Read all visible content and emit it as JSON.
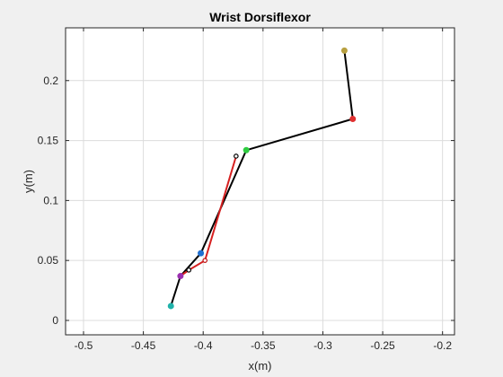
{
  "chart_data": {
    "type": "line",
    "title": "Wrist Dorsiflexor",
    "xlabel": "x(m)",
    "ylabel": "y(m)",
    "xlim": [
      -0.515,
      -0.19
    ],
    "ylim": [
      -0.012,
      0.244
    ],
    "xticks": [
      -0.5,
      -0.45,
      -0.4,
      -0.35,
      -0.3,
      -0.25,
      -0.2
    ],
    "xtick_labels": [
      "-0.5",
      "-0.45",
      "-0.4",
      "-0.35",
      "-0.3",
      "-0.25",
      "-0.2"
    ],
    "yticks": [
      0,
      0.05,
      0.1,
      0.15,
      0.2
    ],
    "ytick_labels": [
      "0",
      "0.05",
      "0.1",
      "0.15",
      "0.2"
    ],
    "grid": true,
    "series": [
      {
        "style": "black-segments",
        "color": "#000000",
        "x": [
          -0.427,
          -0.419,
          -0.402,
          -0.364,
          -0.275,
          -0.282
        ],
        "y": [
          0.012,
          0.037,
          0.056,
          0.142,
          0.168,
          0.225
        ]
      },
      {
        "style": "red-segments",
        "color": "#d62020",
        "x": [
          -0.419,
          -0.412,
          -0.3985,
          -0.3725
        ],
        "y": [
          0.037,
          0.042,
          0.05,
          0.137
        ]
      }
    ],
    "markers": [
      {
        "x": -0.427,
        "y": 0.012,
        "color": "#20b2aa",
        "filled": true
      },
      {
        "x": -0.419,
        "y": 0.037,
        "color": "#9b30b0",
        "filled": true
      },
      {
        "x": -0.402,
        "y": 0.056,
        "color": "#1f6fd0",
        "filled": true
      },
      {
        "x": -0.364,
        "y": 0.142,
        "color": "#2ecc40",
        "filled": true
      },
      {
        "x": -0.275,
        "y": 0.168,
        "color": "#e03030",
        "filled": true
      },
      {
        "x": -0.282,
        "y": 0.225,
        "color": "#b8a040",
        "filled": true
      },
      {
        "x": -0.412,
        "y": 0.042,
        "color": "#000000",
        "filled": false
      },
      {
        "x": -0.3985,
        "y": 0.05,
        "color": "#c01010",
        "filled": false
      },
      {
        "x": -0.3725,
        "y": 0.137,
        "color": "#000000",
        "filled": false
      }
    ]
  }
}
